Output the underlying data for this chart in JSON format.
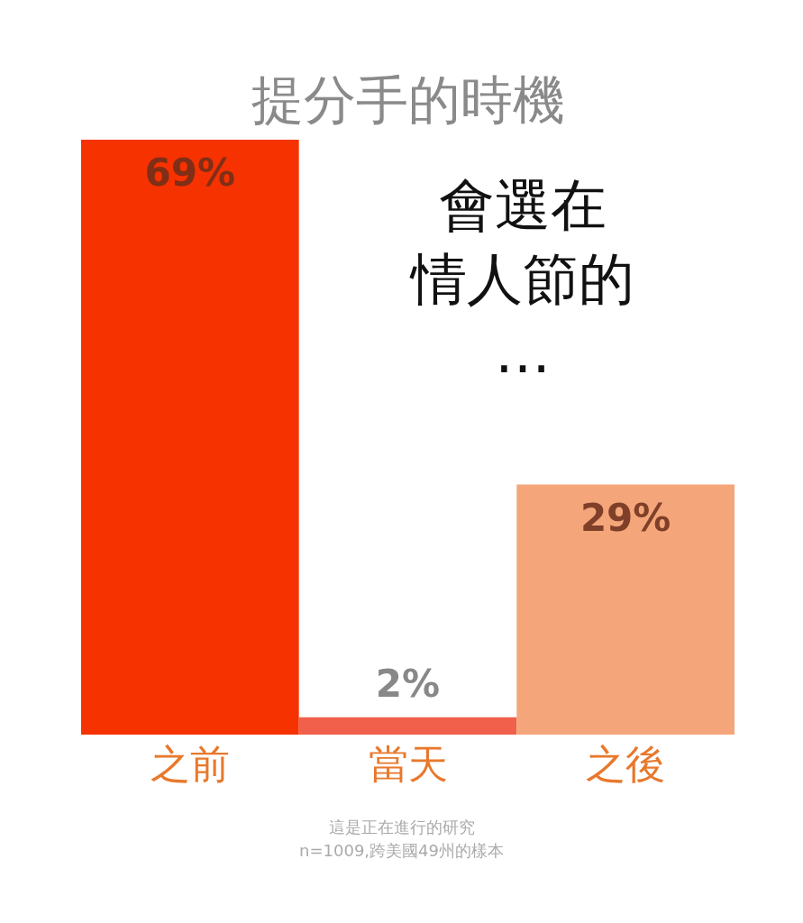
{
  "chart_data": {
    "type": "bar",
    "title": "提分手的時機",
    "categories": [
      "之前",
      "當天",
      "之後"
    ],
    "values": [
      69,
      2,
      29
    ],
    "colors": [
      "#f53200",
      "#f0604a",
      "#f4a67a"
    ],
    "value_labels": [
      "69%",
      "2%",
      "29%"
    ],
    "annotations": [
      "會選在",
      "情人節的",
      "…",
      "這是正在進行的研究",
      "n=1009,跨美國49州的樣本"
    ]
  }
}
